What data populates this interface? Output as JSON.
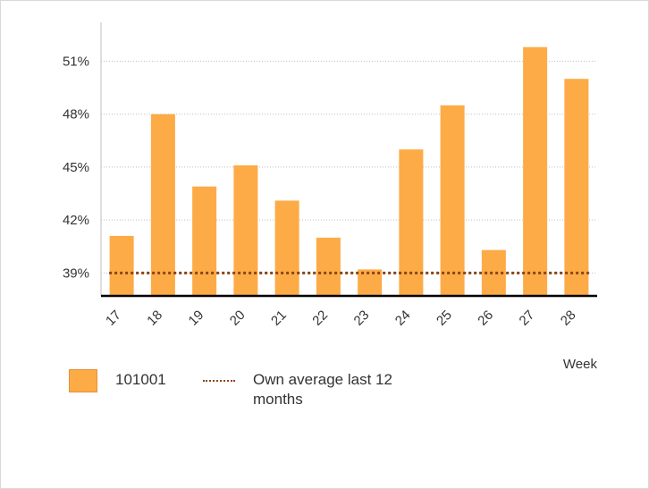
{
  "chart_data": {
    "type": "bar",
    "categories": [
      "17",
      "18",
      "19",
      "20",
      "21",
      "22",
      "23",
      "24",
      "25",
      "26",
      "27",
      "28"
    ],
    "series": [
      {
        "name": "101001",
        "values": [
          41.1,
          48.0,
          43.9,
          45.1,
          43.1,
          41.0,
          39.2,
          46.0,
          48.5,
          40.3,
          51.8,
          50.0
        ],
        "color": "#FDAB46"
      }
    ],
    "reference_line": {
      "name": "Own average last 12 months",
      "value": 39.0,
      "color": "#8B4513",
      "style": "dotted"
    },
    "ylim": [
      37.7,
      53
    ],
    "yticks": [
      39,
      42,
      45,
      48,
      51
    ],
    "ytick_labels": [
      "39%",
      "42%",
      "45%",
      "48%",
      "51%"
    ],
    "xlabel": "Week",
    "ylabel": "",
    "title": "",
    "grid": true,
    "legend_position": "bottom-left"
  },
  "legend": {
    "bar_label": "101001",
    "line_label_1": "Own average last 12",
    "line_label_2": "months"
  }
}
